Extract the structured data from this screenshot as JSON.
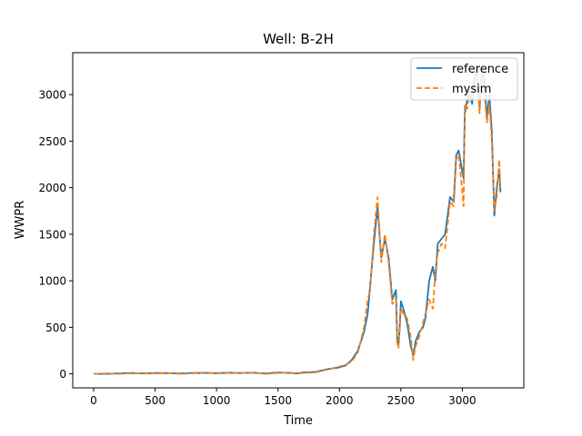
{
  "chart_data": {
    "type": "line",
    "title": "Well: B-2H",
    "xlabel": "Time",
    "ylabel": "WWPR",
    "xlim": [
      -170,
      3500
    ],
    "ylim": [
      -150,
      3450
    ],
    "xticks": [
      0,
      500,
      1000,
      1500,
      2000,
      2500,
      3000
    ],
    "yticks": [
      0,
      500,
      1000,
      1500,
      2000,
      2500,
      3000
    ],
    "grid": false,
    "legend_position": "top-right",
    "series": [
      {
        "name": "reference",
        "color": "#1f77b4",
        "style": "solid",
        "x": [
          0,
          100,
          200,
          300,
          400,
          500,
          600,
          700,
          800,
          900,
          1000,
          1100,
          1200,
          1300,
          1400,
          1500,
          1600,
          1650,
          1700,
          1800,
          1900,
          2000,
          2050,
          2100,
          2150,
          2200,
          2230,
          2250,
          2280,
          2310,
          2340,
          2370,
          2400,
          2430,
          2460,
          2470,
          2480,
          2490,
          2500,
          2520,
          2550,
          2580,
          2600,
          2620,
          2650,
          2680,
          2700,
          2730,
          2760,
          2780,
          2800,
          2830,
          2860,
          2880,
          2900,
          2930,
          2950,
          2970,
          2990,
          3010,
          3020,
          3040,
          3060,
          3080,
          3100,
          3120,
          3140,
          3160,
          3180,
          3200,
          3220,
          3240,
          3260,
          3280,
          3300,
          3310
        ],
        "y": [
          0,
          0,
          5,
          10,
          5,
          10,
          8,
          5,
          10,
          10,
          8,
          12,
          10,
          12,
          5,
          15,
          10,
          5,
          15,
          20,
          50,
          70,
          90,
          150,
          250,
          450,
          650,
          950,
          1400,
          1800,
          1250,
          1450,
          1250,
          800,
          900,
          350,
          300,
          500,
          780,
          700,
          550,
          300,
          200,
          350,
          450,
          500,
          600,
          1000,
          1150,
          1000,
          1400,
          1450,
          1500,
          1700,
          1900,
          1850,
          2350,
          2400,
          2250,
          2100,
          2800,
          2950,
          3000,
          2900,
          3200,
          3250,
          2850,
          3300,
          3150,
          2750,
          3000,
          2600,
          1700,
          2000,
          2200,
          1950
        ]
      },
      {
        "name": "mysim",
        "color": "#ff7f0e",
        "style": "dashed",
        "x": [
          0,
          100,
          200,
          300,
          400,
          500,
          600,
          700,
          800,
          900,
          1000,
          1100,
          1200,
          1300,
          1400,
          1500,
          1600,
          1650,
          1700,
          1800,
          1900,
          2000,
          2050,
          2100,
          2150,
          2200,
          2230,
          2250,
          2280,
          2310,
          2340,
          2370,
          2400,
          2430,
          2460,
          2470,
          2480,
          2490,
          2500,
          2520,
          2550,
          2580,
          2600,
          2620,
          2650,
          2680,
          2700,
          2730,
          2760,
          2780,
          2800,
          2830,
          2860,
          2880,
          2900,
          2930,
          2950,
          2970,
          2990,
          3010,
          3020,
          3040,
          3060,
          3080,
          3100,
          3120,
          3140,
          3160,
          3180,
          3200,
          3220,
          3240,
          3260,
          3280,
          3300,
          3310
        ],
        "y": [
          0,
          5,
          0,
          5,
          10,
          5,
          10,
          0,
          5,
          15,
          5,
          10,
          8,
          15,
          0,
          10,
          15,
          0,
          10,
          15,
          45,
          80,
          100,
          130,
          230,
          500,
          800,
          900,
          1500,
          1900,
          1200,
          1500,
          1200,
          750,
          800,
          300,
          280,
          450,
          700,
          650,
          600,
          400,
          150,
          300,
          400,
          550,
          650,
          800,
          700,
          1100,
          1300,
          1400,
          1350,
          1600,
          1850,
          1800,
          2300,
          2350,
          2100,
          1800,
          2900,
          2850,
          3050,
          2950,
          3100,
          3300,
          2800,
          3250,
          3000,
          2700,
          2900,
          2500,
          1750,
          1900,
          2300,
          2000
        ]
      }
    ]
  }
}
